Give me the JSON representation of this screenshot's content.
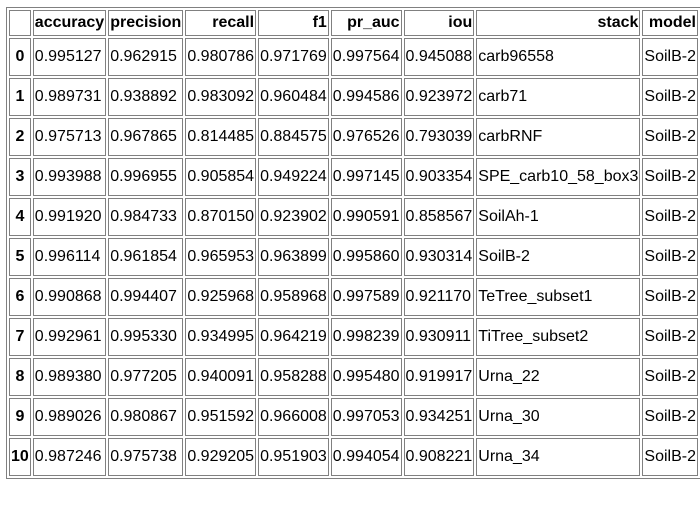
{
  "table": {
    "columns": [
      "",
      "accuracy",
      "precision",
      "recall",
      "f1",
      "pr_auc",
      "iou",
      "stack",
      "model"
    ],
    "rows": [
      {
        "index": "0",
        "accuracy": "0.995127",
        "precision": "0.962915",
        "recall": "0.980786",
        "f1": "0.971769",
        "pr_auc": "0.997564",
        "iou": "0.945088",
        "stack": "carb96558",
        "model": "SoilB-2"
      },
      {
        "index": "1",
        "accuracy": "0.989731",
        "precision": "0.938892",
        "recall": "0.983092",
        "f1": "0.960484",
        "pr_auc": "0.994586",
        "iou": "0.923972",
        "stack": "carb71",
        "model": "SoilB-2"
      },
      {
        "index": "2",
        "accuracy": "0.975713",
        "precision": "0.967865",
        "recall": "0.814485",
        "f1": "0.884575",
        "pr_auc": "0.976526",
        "iou": "0.793039",
        "stack": "carbRNF",
        "model": "SoilB-2"
      },
      {
        "index": "3",
        "accuracy": "0.993988",
        "precision": "0.996955",
        "recall": "0.905854",
        "f1": "0.949224",
        "pr_auc": "0.997145",
        "iou": "0.903354",
        "stack": "SPE_carb10_58_box3",
        "model": "SoilB-2"
      },
      {
        "index": "4",
        "accuracy": "0.991920",
        "precision": "0.984733",
        "recall": "0.870150",
        "f1": "0.923902",
        "pr_auc": "0.990591",
        "iou": "0.858567",
        "stack": "SoilAh-1",
        "model": "SoilB-2"
      },
      {
        "index": "5",
        "accuracy": "0.996114",
        "precision": "0.961854",
        "recall": "0.965953",
        "f1": "0.963899",
        "pr_auc": "0.995860",
        "iou": "0.930314",
        "stack": "SoilB-2",
        "model": "SoilB-2"
      },
      {
        "index": "6",
        "accuracy": "0.990868",
        "precision": "0.994407",
        "recall": "0.925968",
        "f1": "0.958968",
        "pr_auc": "0.997589",
        "iou": "0.921170",
        "stack": "TeTree_subset1",
        "model": "SoilB-2"
      },
      {
        "index": "7",
        "accuracy": "0.992961",
        "precision": "0.995330",
        "recall": "0.934995",
        "f1": "0.964219",
        "pr_auc": "0.998239",
        "iou": "0.930911",
        "stack": "TiTree_subset2",
        "model": "SoilB-2"
      },
      {
        "index": "8",
        "accuracy": "0.989380",
        "precision": "0.977205",
        "recall": "0.940091",
        "f1": "0.958288",
        "pr_auc": "0.995480",
        "iou": "0.919917",
        "stack": "Urna_22",
        "model": "SoilB-2"
      },
      {
        "index": "9",
        "accuracy": "0.989026",
        "precision": "0.980867",
        "recall": "0.951592",
        "f1": "0.966008",
        "pr_auc": "0.997053",
        "iou": "0.934251",
        "stack": "Urna_30",
        "model": "SoilB-2"
      },
      {
        "index": "10",
        "accuracy": "0.987246",
        "precision": "0.975738",
        "recall": "0.929205",
        "f1": "0.951903",
        "pr_auc": "0.994054",
        "iou": "0.908221",
        "stack": "Urna_34",
        "model": "SoilB-2"
      }
    ]
  }
}
